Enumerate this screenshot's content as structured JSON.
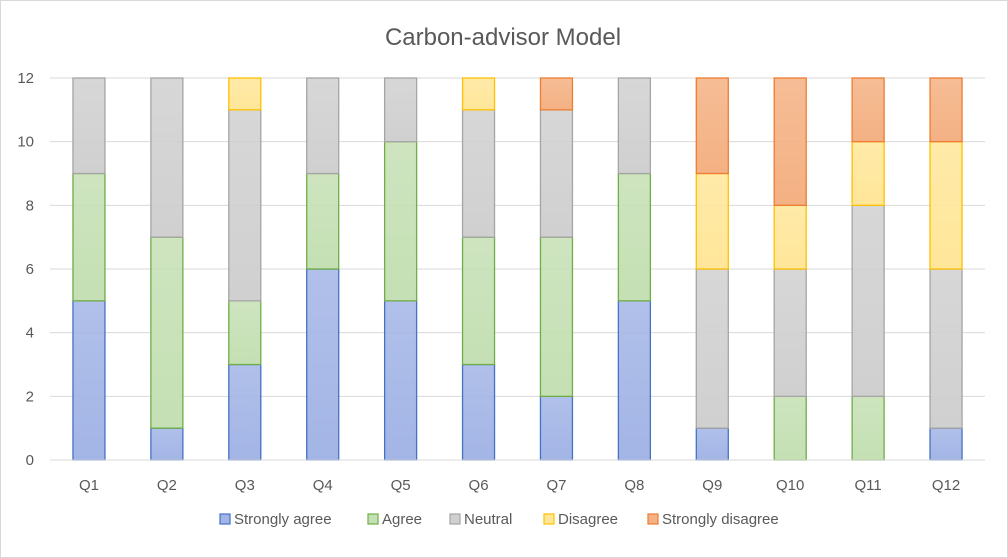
{
  "chart_data": {
    "type": "bar",
    "stacked": true,
    "title": "Carbon-advisor  Model",
    "xlabel": "",
    "ylabel": "",
    "ylim": [
      0,
      12
    ],
    "yticks": [
      0,
      2,
      4,
      6,
      8,
      10,
      12
    ],
    "grid": true,
    "legend_position": "bottom",
    "categories": [
      "Q1",
      "Q2",
      "Q3",
      "Q4",
      "Q5",
      "Q6",
      "Q7",
      "Q8",
      "Q9",
      "Q10",
      "Q11",
      "Q12"
    ],
    "series": [
      {
        "name": "Strongly agree",
        "fill": "#a3b5e6",
        "stroke": "#4472c4",
        "values": [
          5,
          1,
          3,
          6,
          5,
          3,
          2,
          5,
          1,
          0,
          0,
          1
        ]
      },
      {
        "name": "Agree",
        "fill": "#c5e0b4",
        "stroke": "#70ad47",
        "values": [
          4,
          6,
          2,
          3,
          5,
          4,
          5,
          4,
          0,
          2,
          2,
          0
        ]
      },
      {
        "name": "Neutral",
        "fill": "#d0d0d0",
        "stroke": "#a5a5a5",
        "values": [
          3,
          5,
          6,
          3,
          2,
          4,
          4,
          3,
          5,
          4,
          6,
          5
        ]
      },
      {
        "name": "Disagree",
        "fill": "#ffe699",
        "stroke": "#ffc000",
        "values": [
          0,
          0,
          1,
          0,
          0,
          1,
          0,
          0,
          3,
          2,
          2,
          4
        ]
      },
      {
        "name": "Strongly disagree",
        "fill": "#f4b183",
        "stroke": "#ed7d31",
        "values": [
          0,
          0,
          0,
          0,
          0,
          0,
          1,
          0,
          3,
          4,
          2,
          2
        ]
      }
    ]
  }
}
